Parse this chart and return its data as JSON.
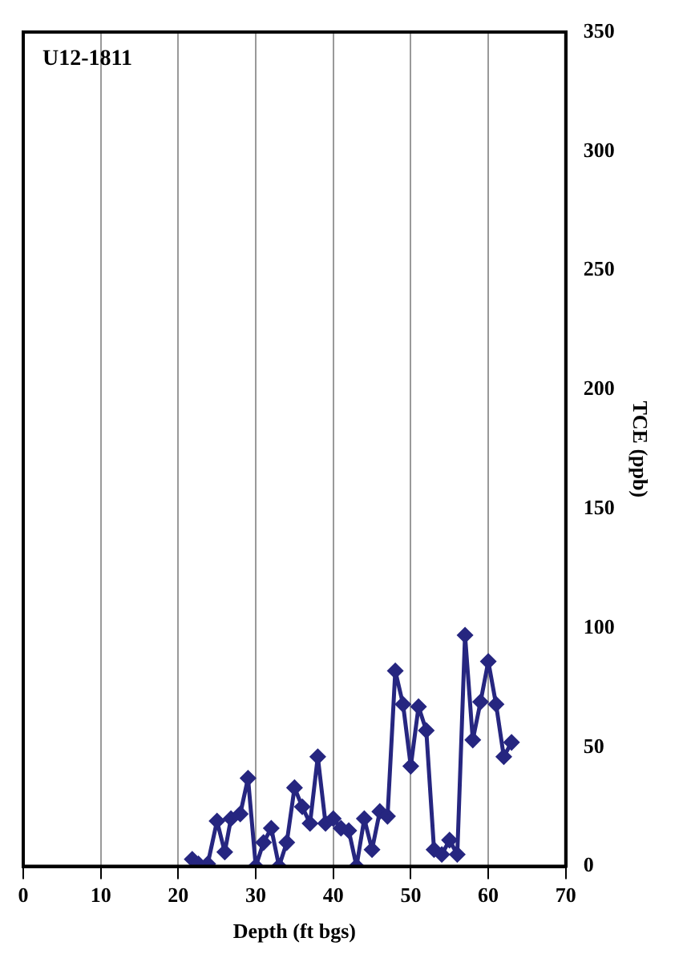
{
  "chart_data": {
    "type": "line",
    "title": "U12-1811",
    "xlabel": "Depth (ft bgs)",
    "ylabel": "TCE (ppb)",
    "xlim": [
      0,
      70
    ],
    "xticks": [
      0,
      10,
      20,
      30,
      40,
      50,
      60,
      70
    ],
    "ylim": [
      0,
      350
    ],
    "yticks": [
      0,
      50,
      100,
      150,
      200,
      250,
      300,
      350
    ],
    "grid": "x",
    "marker": "diamond",
    "line_style": "solid",
    "legend": false,
    "series": [
      {
        "color": "#262680",
        "x": [
          21.8,
          22.6,
          23.8,
          25,
          26,
          26.8,
          28,
          29,
          30,
          31,
          32,
          33,
          34,
          35,
          36,
          37,
          38,
          39,
          40,
          41,
          42,
          43,
          44,
          45,
          46,
          47,
          48,
          49,
          50,
          51,
          52,
          53,
          54,
          55,
          56,
          57,
          58,
          59,
          60,
          61,
          62,
          63
        ],
        "values": [
          3,
          1,
          1,
          19,
          6,
          20,
          22,
          37,
          0,
          10,
          16,
          0,
          10,
          33,
          25,
          18,
          46,
          18,
          20,
          16,
          15,
          0,
          20,
          7,
          23,
          21,
          82,
          68,
          42,
          67,
          57,
          7,
          5,
          11,
          5,
          97,
          53,
          69,
          86,
          68,
          46,
          52
        ]
      }
    ]
  }
}
